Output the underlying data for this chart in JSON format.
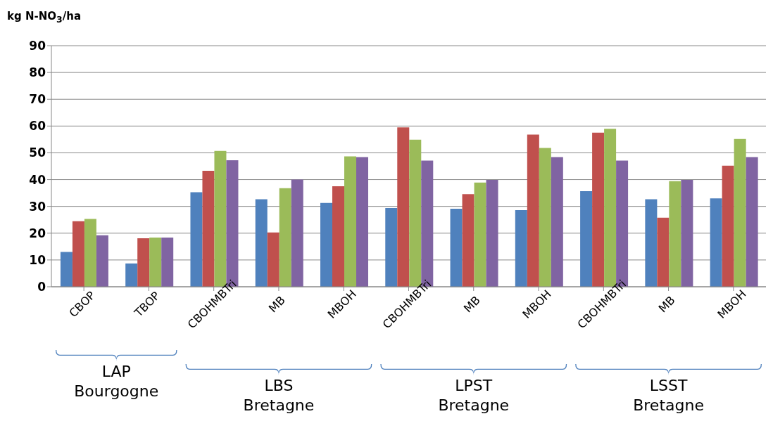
{
  "chart_data": {
    "type": "bar",
    "ylabel": "kg N-NO$_{3}$/ha",
    "categories": [
      "CBOP",
      "TBOP",
      "CBOHMBTri",
      "MB",
      "MBOH",
      "CBOHMBTri",
      "MB",
      "MBOH",
      "CBOHMBTri",
      "MB",
      "MBOH"
    ],
    "series": [
      {
        "color": "#4f81bd",
        "values": [
          13,
          8.7,
          35.3,
          32.7,
          31.3,
          29.4,
          29.1,
          28.6,
          35.7,
          32.7,
          33.0
        ]
      },
      {
        "color": "#c0504d",
        "values": [
          24.5,
          18.1,
          43.3,
          20.3,
          37.5,
          59.5,
          34.6,
          56.8,
          57.5,
          25.8,
          45.2
        ]
      },
      {
        "color": "#9bbb59",
        "values": [
          25.3,
          18.4,
          50.7,
          36.8,
          48.7,
          54.9,
          38.9,
          51.8,
          59.0,
          39.4,
          55.2
        ]
      },
      {
        "color": "#8064a2",
        "values": [
          19.2,
          18.4,
          47.2,
          40,
          48.4,
          47.1,
          39.9,
          48.4,
          47.1,
          39.9,
          48.4
        ]
      }
    ],
    "annotations": [
      "LAP Bourgogne",
      "LBS Bretagne",
      "LPST Bretagne",
      "LSST Bretagne"
    ],
    "ylim": [
      0,
      90
    ],
    "yticks": [
      0,
      10,
      20,
      30,
      40,
      50,
      60,
      70,
      80,
      90
    ],
    "grid": "y",
    "legend": false
  }
}
